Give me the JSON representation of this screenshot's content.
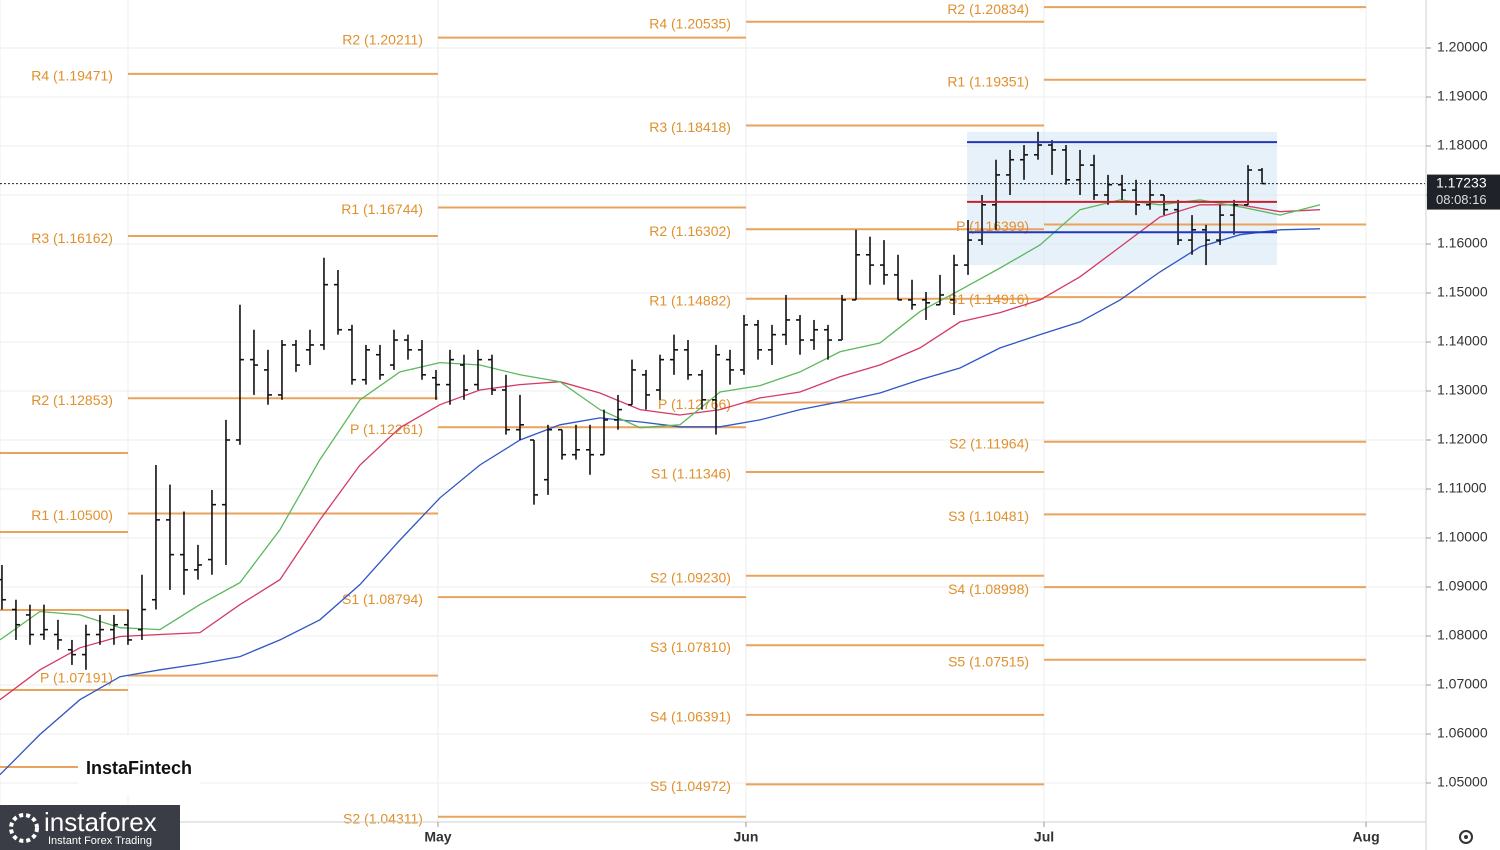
{
  "chart_data": {
    "type": "ohlc",
    "currency": "USD",
    "xlim": [
      -0.14,
      101.64
    ],
    "xticks": [
      {
        "value": 31.14,
        "label": "May"
      },
      {
        "value": 53.14,
        "label": "Jun"
      },
      {
        "value": 74.43,
        "label": "Jul"
      },
      {
        "value": 97.43,
        "label": "Aug"
      }
    ],
    "ylim": [
      1.04204,
      1.209796
    ],
    "yticks": [
      {
        "value": 1.05,
        "label": "1.05000"
      },
      {
        "value": 1.06,
        "label": "1.06000"
      },
      {
        "value": 1.07,
        "label": "1.07000"
      },
      {
        "value": 1.08,
        "label": "1.08000"
      },
      {
        "value": 1.09,
        "label": "1.09000"
      },
      {
        "value": 1.1,
        "label": "1.10000"
      },
      {
        "value": 1.11,
        "label": "1.11000"
      },
      {
        "value": 1.12,
        "label": "1.12000"
      },
      {
        "value": 1.13,
        "label": "1.13000"
      },
      {
        "value": 1.14,
        "label": "1.14000"
      },
      {
        "value": 1.15,
        "label": "1.15000"
      },
      {
        "value": 1.16,
        "label": "1.16000"
      },
      {
        "value": 1.17,
        "label": "1.17000"
      },
      {
        "value": 1.18,
        "label": "1.18000"
      },
      {
        "value": 1.19,
        "label": "1.19000"
      },
      {
        "value": 1.2,
        "label": "1.20000"
      }
    ],
    "grid": true,
    "bars": {
      "color": "#111111",
      "x": [
        0,
        1,
        2,
        3,
        4,
        5,
        6,
        7,
        8,
        9,
        10,
        11,
        12,
        13,
        14,
        15,
        16,
        17,
        18,
        19,
        20,
        21,
        22,
        23,
        24,
        25,
        26,
        27,
        28,
        29,
        30,
        31,
        32,
        33,
        34,
        35,
        36,
        37,
        38,
        39,
        40,
        41,
        42,
        43,
        44,
        45,
        46,
        47,
        48,
        49,
        50,
        51,
        52,
        53,
        54,
        55,
        56,
        57,
        58,
        59,
        60,
        61,
        62,
        63,
        64,
        65,
        66,
        67,
        68,
        69,
        70,
        71,
        72,
        73,
        74,
        75,
        76,
        77,
        78,
        79,
        80,
        81,
        82,
        83,
        84,
        85,
        86,
        87,
        88,
        89,
        90
      ],
      "open": [
        1.0915,
        1.0854,
        1.0843,
        1.0803,
        1.0803,
        1.0772,
        1.0762,
        1.0803,
        1.0813,
        1.0823,
        1.0813,
        1.0874,
        1.1037,
        1.0966,
        1.0935,
        1.0956,
        1.1068,
        1.12,
        1.1364,
        1.1343,
        1.1292,
        1.1394,
        1.1384,
        1.1394,
        1.1517,
        1.1425,
        1.1323,
        1.1374,
        1.1353,
        1.1404,
        1.1384,
        1.1327,
        1.1313,
        1.1353,
        1.1313,
        1.1364,
        1.1302,
        1.1221,
        1.12,
        1.1119,
        1.1221,
        1.117,
        1.118,
        1.117,
        1.1241,
        1.1272,
        1.1333,
        1.1302,
        1.1364,
        1.1384,
        1.1333,
        1.1282,
        1.1364,
        1.1343,
        1.1435,
        1.1384,
        1.1415,
        1.1445,
        1.1404,
        1.1425,
        1.1404,
        1.1486,
        1.1578,
        1.1557,
        1.1537,
        1.1486,
        1.1486,
        1.1476,
        1.1486,
        1.1557,
        1.1608,
        1.168,
        1.1741,
        1.1772,
        1.1782,
        1.1802,
        1.1792,
        1.1731,
        1.1761,
        1.17,
        1.1721,
        1.171,
        1.168,
        1.17,
        1.167,
        1.1608,
        1.1629,
        1.1608,
        1.1659,
        1.168,
        1.1751
      ],
      "high": [
        1.0945,
        1.0874,
        1.0864,
        1.0864,
        1.0833,
        1.0792,
        1.0823,
        1.0843,
        1.0843,
        1.0854,
        1.0925,
        1.1149,
        1.1109,
        1.1054,
        1.0986,
        1.1098,
        1.1241,
        1.1476,
        1.1425,
        1.1384,
        1.1404,
        1.1404,
        1.1425,
        1.1572,
        1.1547,
        1.1435,
        1.1394,
        1.1394,
        1.1425,
        1.1415,
        1.1404,
        1.1343,
        1.1384,
        1.1374,
        1.1384,
        1.1374,
        1.1333,
        1.1292,
        1.12,
        1.1231,
        1.1221,
        1.1231,
        1.1231,
        1.1262,
        1.1292,
        1.1364,
        1.1343,
        1.1374,
        1.1415,
        1.1404,
        1.1343,
        1.1394,
        1.1384,
        1.1455,
        1.1445,
        1.1435,
        1.1496,
        1.1455,
        1.1445,
        1.1435,
        1.1496,
        1.1629,
        1.1615,
        1.1608,
        1.1578,
        1.1527,
        1.1502,
        1.1537,
        1.1578,
        1.1649,
        1.17,
        1.1772,
        1.1792,
        1.1802,
        1.1829,
        1.1812,
        1.1802,
        1.1792,
        1.1782,
        1.1741,
        1.1741,
        1.1731,
        1.1731,
        1.17,
        1.169,
        1.1659,
        1.1639,
        1.168,
        1.169,
        1.1761,
        1.1755
      ],
      "low": [
        1.0854,
        1.0792,
        1.0782,
        1.0792,
        1.0772,
        1.0741,
        1.0731,
        1.0782,
        1.0782,
        1.0782,
        1.0792,
        1.0854,
        1.0894,
        1.0884,
        1.0915,
        1.0925,
        1.0945,
        1.119,
        1.1292,
        1.1272,
        1.1282,
        1.1339,
        1.1353,
        1.1384,
        1.1415,
        1.1313,
        1.1313,
        1.1323,
        1.1343,
        1.1364,
        1.1323,
        1.1282,
        1.1272,
        1.1282,
        1.1302,
        1.1292,
        1.1211,
        1.12,
        1.1068,
        1.1088,
        1.116,
        1.116,
        1.1129,
        1.117,
        1.1221,
        1.1272,
        1.1262,
        1.1282,
        1.1333,
        1.1323,
        1.1262,
        1.1211,
        1.1313,
        1.1333,
        1.1364,
        1.1353,
        1.1394,
        1.1374,
        1.1384,
        1.1364,
        1.1404,
        1.1486,
        1.1517,
        1.1517,
        1.1486,
        1.1466,
        1.1445,
        1.1476,
        1.1455,
        1.1537,
        1.1598,
        1.1629,
        1.17,
        1.1731,
        1.1772,
        1.1741,
        1.1721,
        1.17,
        1.169,
        1.168,
        1.169,
        1.1659,
        1.167,
        1.1659,
        1.1598,
        1.1578,
        1.1557,
        1.1598,
        1.1619,
        1.168,
        1.1725
      ],
      "close": [
        1.0874,
        1.0823,
        1.0803,
        1.0813,
        1.0792,
        1.0762,
        1.0803,
        1.0813,
        1.0823,
        1.0792,
        1.0854,
        1.1037,
        1.0966,
        1.0935,
        1.0945,
        1.1068,
        1.12,
        1.1364,
        1.1353,
        1.1292,
        1.1394,
        1.1353,
        1.1394,
        1.1517,
        1.1425,
        1.1323,
        1.1384,
        1.1333,
        1.1404,
        1.1384,
        1.1333,
        1.1313,
        1.1364,
        1.1302,
        1.1364,
        1.1302,
        1.1221,
        1.1231,
        1.1088,
        1.1221,
        1.117,
        1.118,
        1.117,
        1.1241,
        1.1262,
        1.1343,
        1.1292,
        1.1364,
        1.1384,
        1.1333,
        1.1282,
        1.1374,
        1.1343,
        1.1435,
        1.1384,
        1.1415,
        1.1445,
        1.1404,
        1.1425,
        1.1404,
        1.1486,
        1.1578,
        1.1557,
        1.1537,
        1.1486,
        1.1476,
        1.148,
        1.1496,
        1.1557,
        1.1608,
        1.168,
        1.1741,
        1.1772,
        1.1782,
        1.1802,
        1.1792,
        1.1731,
        1.1761,
        1.17,
        1.1721,
        1.171,
        1.168,
        1.17,
        1.167,
        1.1608,
        1.1629,
        1.1608,
        1.1659,
        1.168,
        1.1751,
        1.17233
      ]
    },
    "series": [
      {
        "color": "#2f56c6",
        "x": [
          -0.14,
          2.71,
          5.57,
          8.43,
          11.29,
          14.14,
          17,
          19.86,
          22.71,
          25.57,
          28.43,
          31.29,
          34.14,
          37,
          39.86,
          42.71,
          45.57,
          48.43,
          51.29,
          54.14,
          57,
          59.86,
          62.71,
          65.57,
          68.43,
          71.29,
          74.14,
          77,
          79.86,
          82.71,
          85.57,
          88.43,
          91.29,
          94.14
        ],
        "values": [
          1.0517,
          1.0599,
          1.067,
          1.0717,
          1.0731,
          1.0743,
          1.0758,
          1.0792,
          1.0833,
          1.0905,
          1.0996,
          1.1082,
          1.1149,
          1.12,
          1.1231,
          1.1245,
          1.1237,
          1.1227,
          1.1227,
          1.1241,
          1.1262,
          1.1278,
          1.1296,
          1.1323,
          1.1347,
          1.1388,
          1.1415,
          1.1441,
          1.1486,
          1.1543,
          1.1594,
          1.1619,
          1.1629,
          1.1631
        ]
      },
      {
        "color": "#d43a63",
        "x": [
          -0.14,
          2.71,
          5.57,
          8.43,
          11.29,
          14.14,
          17,
          19.86,
          22.71,
          25.57,
          28.43,
          31.29,
          34.14,
          37,
          39.86,
          42.71,
          45.57,
          48.43,
          51.29,
          54.14,
          57,
          59.86,
          62.71,
          65.57,
          68.43,
          71.29,
          74.14,
          77,
          79.86,
          82.71,
          85.57,
          88.43,
          91.29,
          94.14
        ],
        "values": [
          1.067,
          1.0731,
          1.0776,
          1.0799,
          1.0803,
          1.0807,
          1.0864,
          1.0915,
          1.1037,
          1.1149,
          1.1225,
          1.1272,
          1.1302,
          1.1313,
          1.1319,
          1.1296,
          1.1262,
          1.1251,
          1.1262,
          1.1286,
          1.1298,
          1.1329,
          1.1353,
          1.1388,
          1.1441,
          1.146,
          1.1486,
          1.1533,
          1.1594,
          1.1655,
          1.168,
          1.168,
          1.1666,
          1.167
        ]
      },
      {
        "color": "#5cb85c",
        "x": [
          -0.14,
          2.71,
          5.57,
          8.43,
          11.29,
          14.14,
          17,
          19.86,
          22.71,
          25.57,
          28.43,
          31.29,
          34.14,
          37,
          39.86,
          42.71,
          45.57,
          48.43,
          51.29,
          54.14,
          57,
          59.86,
          62.71,
          65.57,
          68.43,
          71.29,
          74.14,
          77,
          79.86,
          82.71,
          85.57,
          88.43,
          91.29,
          94.14
        ],
        "values": [
          1.0792,
          1.085,
          1.0843,
          1.0817,
          1.0813,
          1.0864,
          1.0909,
          1.1017,
          1.116,
          1.1282,
          1.1339,
          1.1358,
          1.1353,
          1.1333,
          1.1319,
          1.1262,
          1.1225,
          1.1231,
          1.1298,
          1.1311,
          1.1339,
          1.138,
          1.1398,
          1.1462,
          1.1506,
          1.1551,
          1.1598,
          1.167,
          1.169,
          1.168,
          1.169,
          1.1676,
          1.1659,
          1.168
        ]
      }
    ],
    "pivots": {
      "color": "#e9a35c",
      "periods": [
        {
          "start": -0.14,
          "end": 9,
          "levels": [
            {
              "label": null,
              "value": 1.11735
            },
            {
              "label": null,
              "value": 1.10122
            },
            {
              "label": null,
              "value": 1.08531
            },
            {
              "label": null,
              "value": 1.06898
            },
            {
              "label": null,
              "value": 1.05327
            }
          ]
        },
        {
          "start": 9,
          "end": 31.14,
          "levels": [
            {
              "label": "R4 (1.19471)",
              "value": 1.19471
            },
            {
              "label": "R3 (1.16162)",
              "value": 1.16162
            },
            {
              "label": "R2 (1.12853)",
              "value": 1.12853
            },
            {
              "label": "R1 (1.10500)",
              "value": 1.105
            },
            {
              "label": "P (1.07191)",
              "value": 1.07191
            }
          ]
        },
        {
          "start": 31.14,
          "end": 53.14,
          "levels": [
            {
              "label": "R2 (1.20211)",
              "value": 1.20211
            },
            {
              "label": "R1 (1.16744)",
              "value": 1.16744
            },
            {
              "label": "P (1.12261)",
              "value": 1.12261
            },
            {
              "label": "S1 (1.08794)",
              "value": 1.08794
            },
            {
              "label": "S2 (1.04311)",
              "value": 1.04311
            }
          ]
        },
        {
          "start": 53.14,
          "end": 74.43,
          "levels": [
            {
              "label": "R4 (1.20535)",
              "value": 1.20535
            },
            {
              "label": "R3 (1.18418)",
              "value": 1.18418
            },
            {
              "label": "R2 (1.16302)",
              "value": 1.16302
            },
            {
              "label": "R1 (1.14882)",
              "value": 1.14882
            },
            {
              "label": "P (1.12766)",
              "value": 1.12766
            },
            {
              "label": "S1 (1.11346)",
              "value": 1.11346
            },
            {
              "label": "S2 (1.09230)",
              "value": 1.0923
            },
            {
              "label": "S3 (1.07810)",
              "value": 1.0781
            },
            {
              "label": "S4 (1.06391)",
              "value": 1.06391
            },
            {
              "label": "S5 (1.04972)",
              "value": 1.04972
            }
          ]
        },
        {
          "start": 74.43,
          "end": 97.43,
          "levels": [
            {
              "label": "R2 (1.20834)",
              "value": 1.20834
            },
            {
              "label": "R1 (1.19351)",
              "value": 1.19351
            },
            {
              "label": "P (1.16399)",
              "value": 1.16399
            },
            {
              "label": "S1 (1.14916)",
              "value": 1.14916
            },
            {
              "label": "S2 (1.11964)",
              "value": 1.11964
            },
            {
              "label": "S3 (1.10481)",
              "value": 1.10481
            },
            {
              "label": "S4 (1.08998)",
              "value": 1.08998
            },
            {
              "label": "S5 (1.07515)",
              "value": 1.07515
            }
          ]
        }
      ]
    },
    "profile": {
      "x": [
        68.93,
        91.07
      ],
      "range": [
        1.1557,
        1.1829
      ],
      "color": "#d6e8f7",
      "levels": [
        {
          "color": "#2536b8",
          "value": 1.1808
        },
        {
          "color": "#c8202a",
          "value": 1.1686
        },
        {
          "color": "#2536b8",
          "value": 1.1624
        }
      ]
    },
    "last_price": {
      "value": 1.17233,
      "label": "1.17233",
      "countdown": "08:08:16"
    }
  },
  "brand": {
    "fintech": "InstaFintech",
    "logo": "instaforex",
    "tagline": "Instant Forex Trading"
  }
}
